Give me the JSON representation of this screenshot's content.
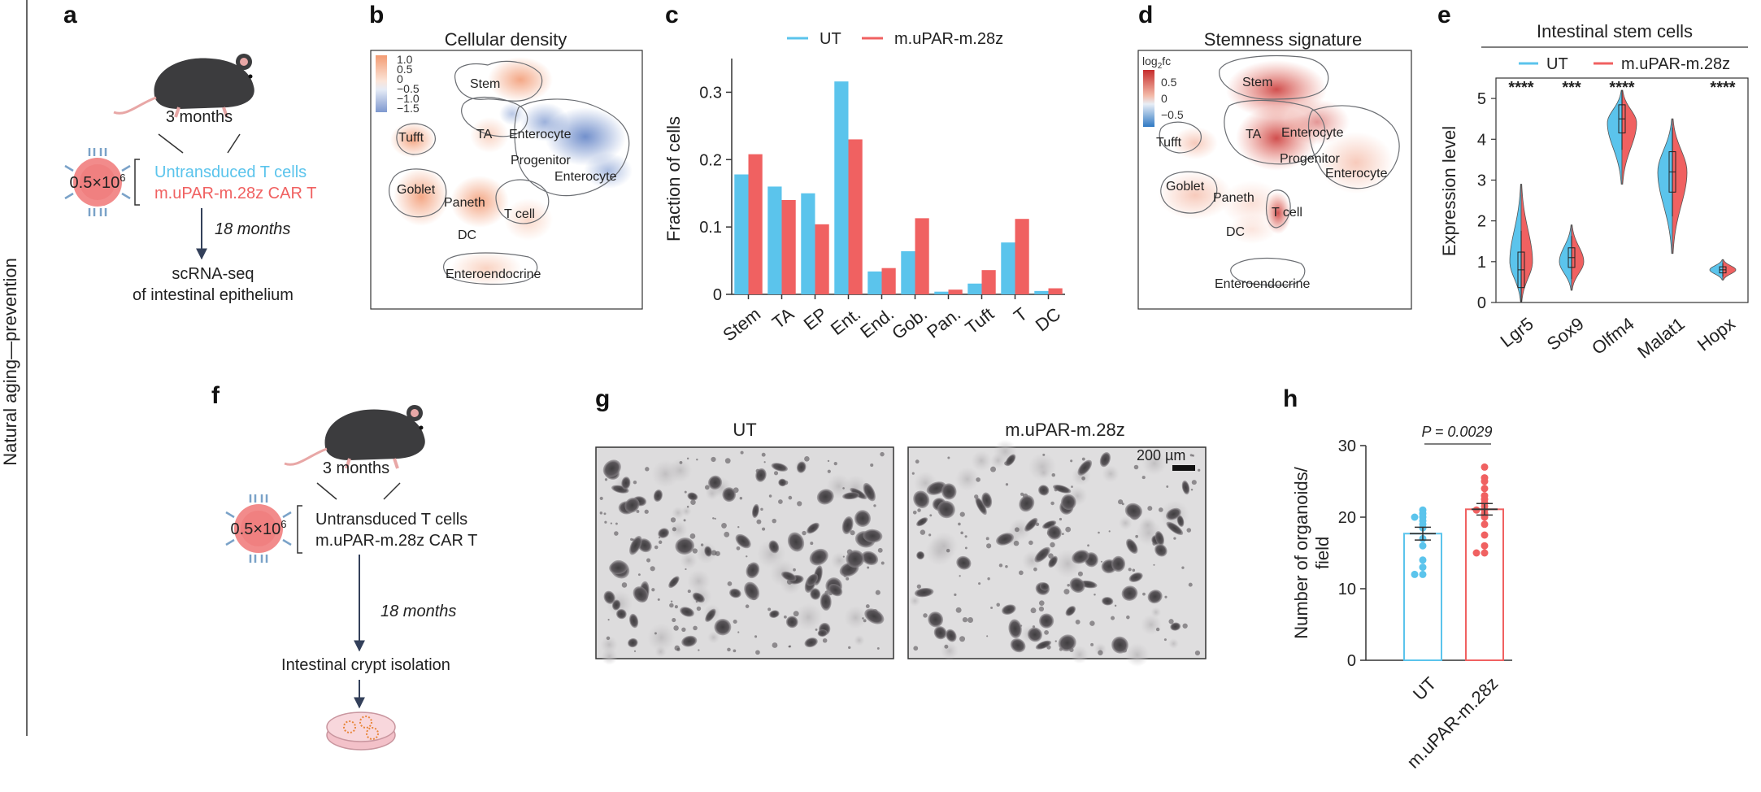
{
  "side_label": "Natural aging—prevention",
  "panels": {
    "a": {
      "label": "a",
      "age": "3 months",
      "dose": "0.5×10",
      "dose_exp": "6",
      "group1": "Untransduced T cells",
      "group2": "m.uPAR-m.28z CAR T",
      "duration": "18 months",
      "readout_line1": "scRNA-seq",
      "readout_line2": "of intestinal epithelium"
    },
    "b": {
      "label": "b",
      "title": "Cellular density",
      "scale": [
        "1.0",
        "0.5",
        "0",
        "−0.5",
        "−1.0",
        "−1.5"
      ],
      "clusters": [
        "Stem",
        "TA",
        "Enterocyte",
        "Progenitor",
        "Enterocyte",
        "Tufft",
        "Goblet",
        "Paneth",
        "T cell",
        "DC",
        "Enteroendocrine"
      ]
    },
    "d": {
      "label": "d",
      "title": "Stemness signature",
      "scale_title": "log",
      "scale_title_sub": "2",
      "scale_title_end": "fc",
      "scale": [
        "0.5",
        "0",
        "−0.5"
      ],
      "clusters": [
        "Stem",
        "TA",
        "Enterocyte",
        "Progenitor",
        "Enterocyte",
        "Tufft",
        "Goblet",
        "Paneth",
        "T cell",
        "DC",
        "Enteroendocrine"
      ]
    },
    "f": {
      "label": "f",
      "age": "3 months",
      "dose": "0.5×10",
      "dose_exp": "6",
      "group1": "Untransduced T cells",
      "group2": "m.uPAR-m.28z CAR T",
      "duration": "18 months",
      "step": "Intestinal crypt isolation"
    },
    "g": {
      "label": "g",
      "left_title": "UT",
      "right_title": "m.uPAR-m.28z",
      "scalebar": "200 µm"
    }
  },
  "colors": {
    "UT": "#5bc4ec",
    "CAR": "#f06161"
  },
  "chart_data": [
    {
      "panel": "c",
      "type": "bar",
      "ylabel": "Fraction of cells",
      "ylim": [
        0,
        0.35
      ],
      "yticks": [
        "0",
        "0.1",
        "0.2",
        "0.3"
      ],
      "categories": [
        "Stem",
        "TA",
        "EP",
        "Ent.",
        "End.",
        "Gob.",
        "Pan.",
        "Tuft",
        "T",
        "DC"
      ],
      "series": [
        {
          "name": "UT",
          "values": [
            0.178,
            0.16,
            0.15,
            0.316,
            0.034,
            0.064,
            0.004,
            0.016,
            0.077,
            0.005
          ]
        },
        {
          "name": "m.uPAR-m.28z",
          "values": [
            0.208,
            0.14,
            0.104,
            0.23,
            0.039,
            0.113,
            0.007,
            0.036,
            0.112,
            0.009
          ]
        }
      ],
      "legend": "top"
    },
    {
      "panel": "e",
      "type": "violin",
      "title": "Intestinal stem cells",
      "ylabel": "Expression level",
      "ylim": [
        0,
        5.5
      ],
      "yticks": [
        "0",
        "1",
        "2",
        "3",
        "4",
        "5"
      ],
      "categories": [
        "Lgr5",
        "Sox9",
        "Olfm4",
        "Malat1",
        "Hopx"
      ],
      "significance": [
        "****",
        "***",
        "****",
        "",
        "****"
      ],
      "medians": [
        0.8,
        1.1,
        4.5,
        3.2,
        0.8
      ],
      "series": [
        {
          "name": "UT"
        },
        {
          "name": "m.uPAR-m.28z"
        }
      ],
      "legend": "top"
    },
    {
      "panel": "h",
      "type": "bar",
      "ylabel_line1": "Number of organoids/",
      "ylabel_line2": "field",
      "ylim": [
        0,
        30
      ],
      "yticks": [
        "0",
        "10",
        "20",
        "30"
      ],
      "categories": [
        "UT",
        "m.uPAR-m.28z"
      ],
      "values": [
        17.7,
        21.1
      ],
      "sem": [
        0.9,
        0.8
      ],
      "points": [
        [
          21,
          20.5,
          20,
          20,
          19.5,
          19,
          18.5,
          17,
          16,
          14,
          13,
          12,
          12
        ],
        [
          27,
          25.5,
          25,
          24,
          23,
          22.5,
          22,
          21.5,
          21,
          21,
          20.5,
          20,
          19,
          17.5,
          16,
          15,
          15
        ]
      ],
      "pvalue": "P = 0.0029"
    }
  ]
}
